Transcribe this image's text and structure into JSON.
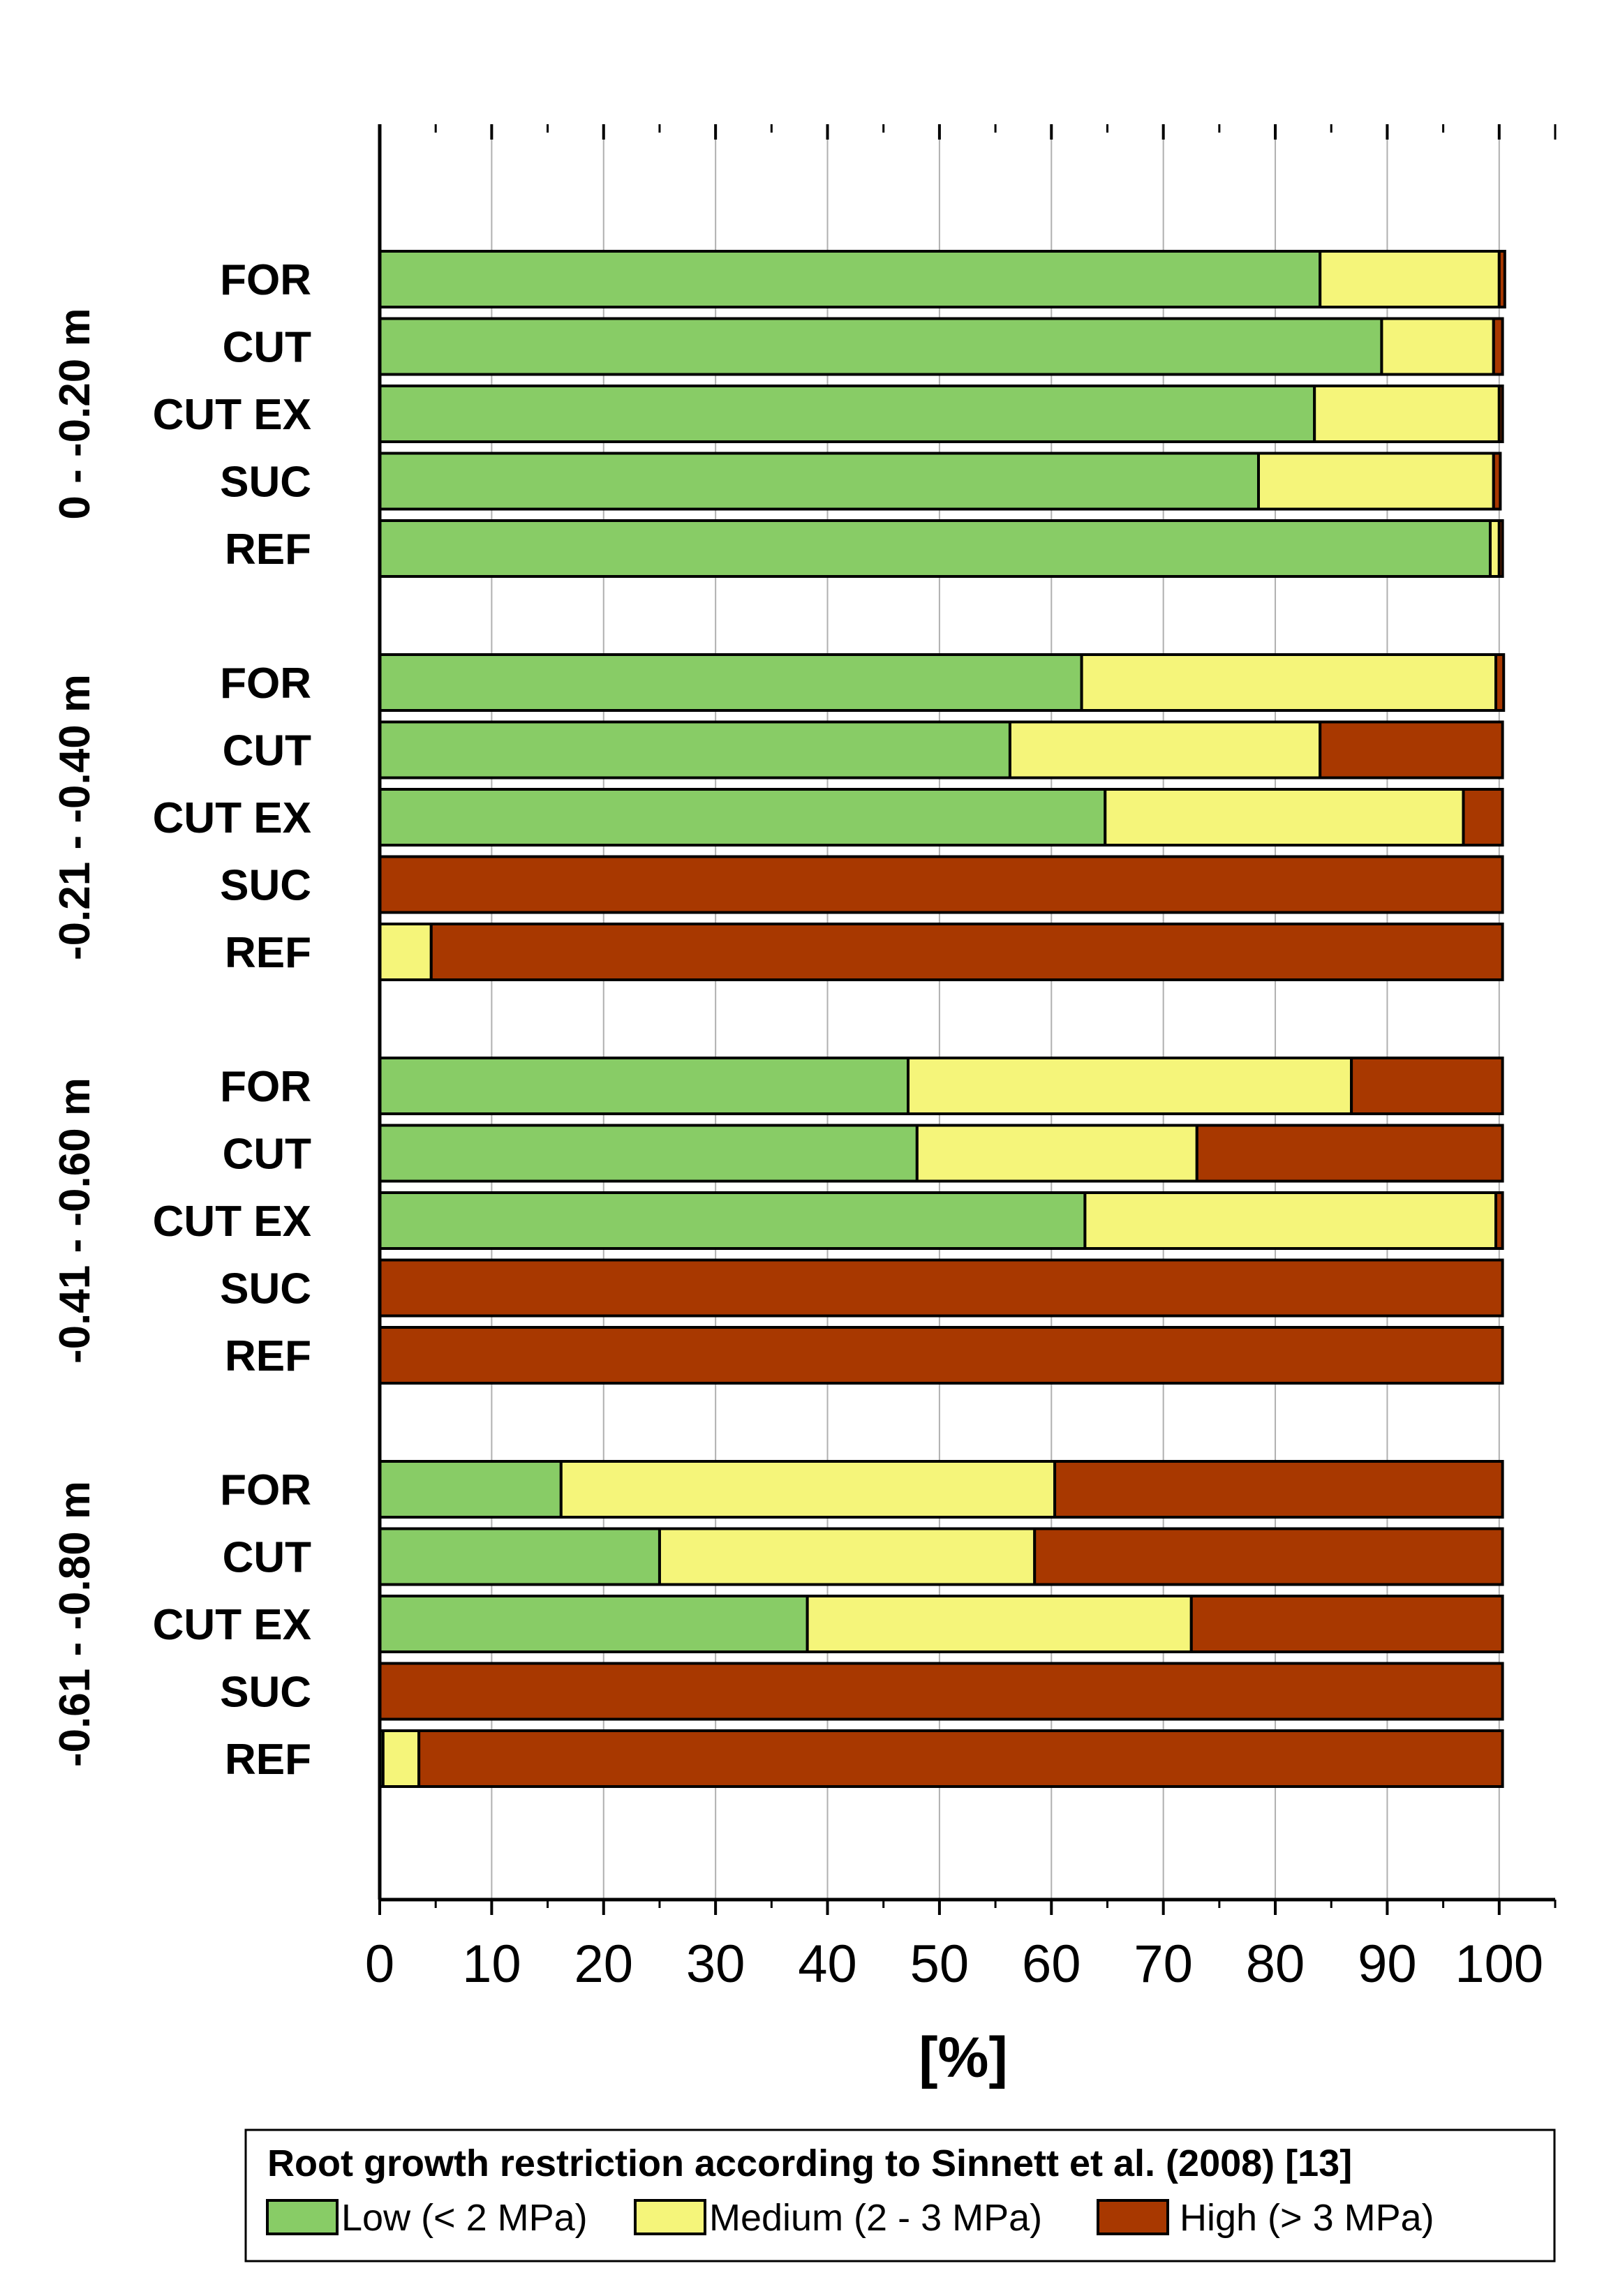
{
  "chart_data": {
    "type": "bar",
    "orientation": "horizontal",
    "stacked": true,
    "xlabel": "[%]",
    "xlim": [
      0,
      105
    ],
    "xticks": [
      0,
      10,
      20,
      30,
      40,
      50,
      60,
      70,
      80,
      90,
      100
    ],
    "grid": true,
    "legend": {
      "title": "Root growth restriction according to Sinnett et al. (2008) [13]",
      "position": "bottom",
      "entries": [
        {
          "name": "Low (< 2 MPa)",
          "color": "#88cc66"
        },
        {
          "name": "Medium (2 - 3 MPa)",
          "color": "#f5f57a"
        },
        {
          "name": "High (> 3 MPa)",
          "color": "#a83800"
        }
      ]
    },
    "groups": [
      {
        "label": "0 - -0.20 m",
        "bars": [
          {
            "label": "FOR",
            "values": [
              84,
              16,
              0.5
            ]
          },
          {
            "label": "CUT",
            "values": [
              89.5,
              10,
              0.8
            ]
          },
          {
            "label": "CUT EX",
            "values": [
              83.5,
              16.5,
              0.3
            ]
          },
          {
            "label": "SUC",
            "values": [
              78.5,
              21,
              0.6
            ]
          },
          {
            "label": "REF",
            "values": [
              99.2,
              0.8,
              0.3
            ]
          }
        ]
      },
      {
        "label": "-0.21 - -0.40 m",
        "bars": [
          {
            "label": "FOR",
            "values": [
              62.7,
              37,
              0.7
            ]
          },
          {
            "label": "CUT",
            "values": [
              56.3,
              27.7,
              16.3
            ]
          },
          {
            "label": "CUT EX",
            "values": [
              64.8,
              32,
              3.5
            ]
          },
          {
            "label": "SUC",
            "values": [
              0,
              0,
              100.3
            ]
          },
          {
            "label": "REF",
            "values": [
              0,
              4.6,
              95.7
            ]
          }
        ]
      },
      {
        "label": "-0.41 - -0.60 m",
        "bars": [
          {
            "label": "FOR",
            "values": [
              47.2,
              39.6,
              13.5
            ]
          },
          {
            "label": "CUT",
            "values": [
              48,
              25,
              27.3
            ]
          },
          {
            "label": "CUT EX",
            "values": [
              63,
              36.7,
              0.6
            ]
          },
          {
            "label": "SUC",
            "values": [
              0,
              0,
              100.3
            ]
          },
          {
            "label": "REF",
            "values": [
              0,
              0,
              100.3
            ]
          }
        ]
      },
      {
        "label": "-0.61 - -0.80 m",
        "bars": [
          {
            "label": "FOR",
            "values": [
              16.2,
              44.1,
              40
            ]
          },
          {
            "label": "CUT",
            "values": [
              25,
              33.5,
              41.8
            ]
          },
          {
            "label": "CUT EX",
            "values": [
              38.2,
              34.3,
              27.8
            ]
          },
          {
            "label": "SUC",
            "values": [
              0,
              0,
              100.3
            ]
          },
          {
            "label": "REF",
            "values": [
              0.3,
              3.2,
              96.8
            ]
          }
        ]
      }
    ]
  }
}
